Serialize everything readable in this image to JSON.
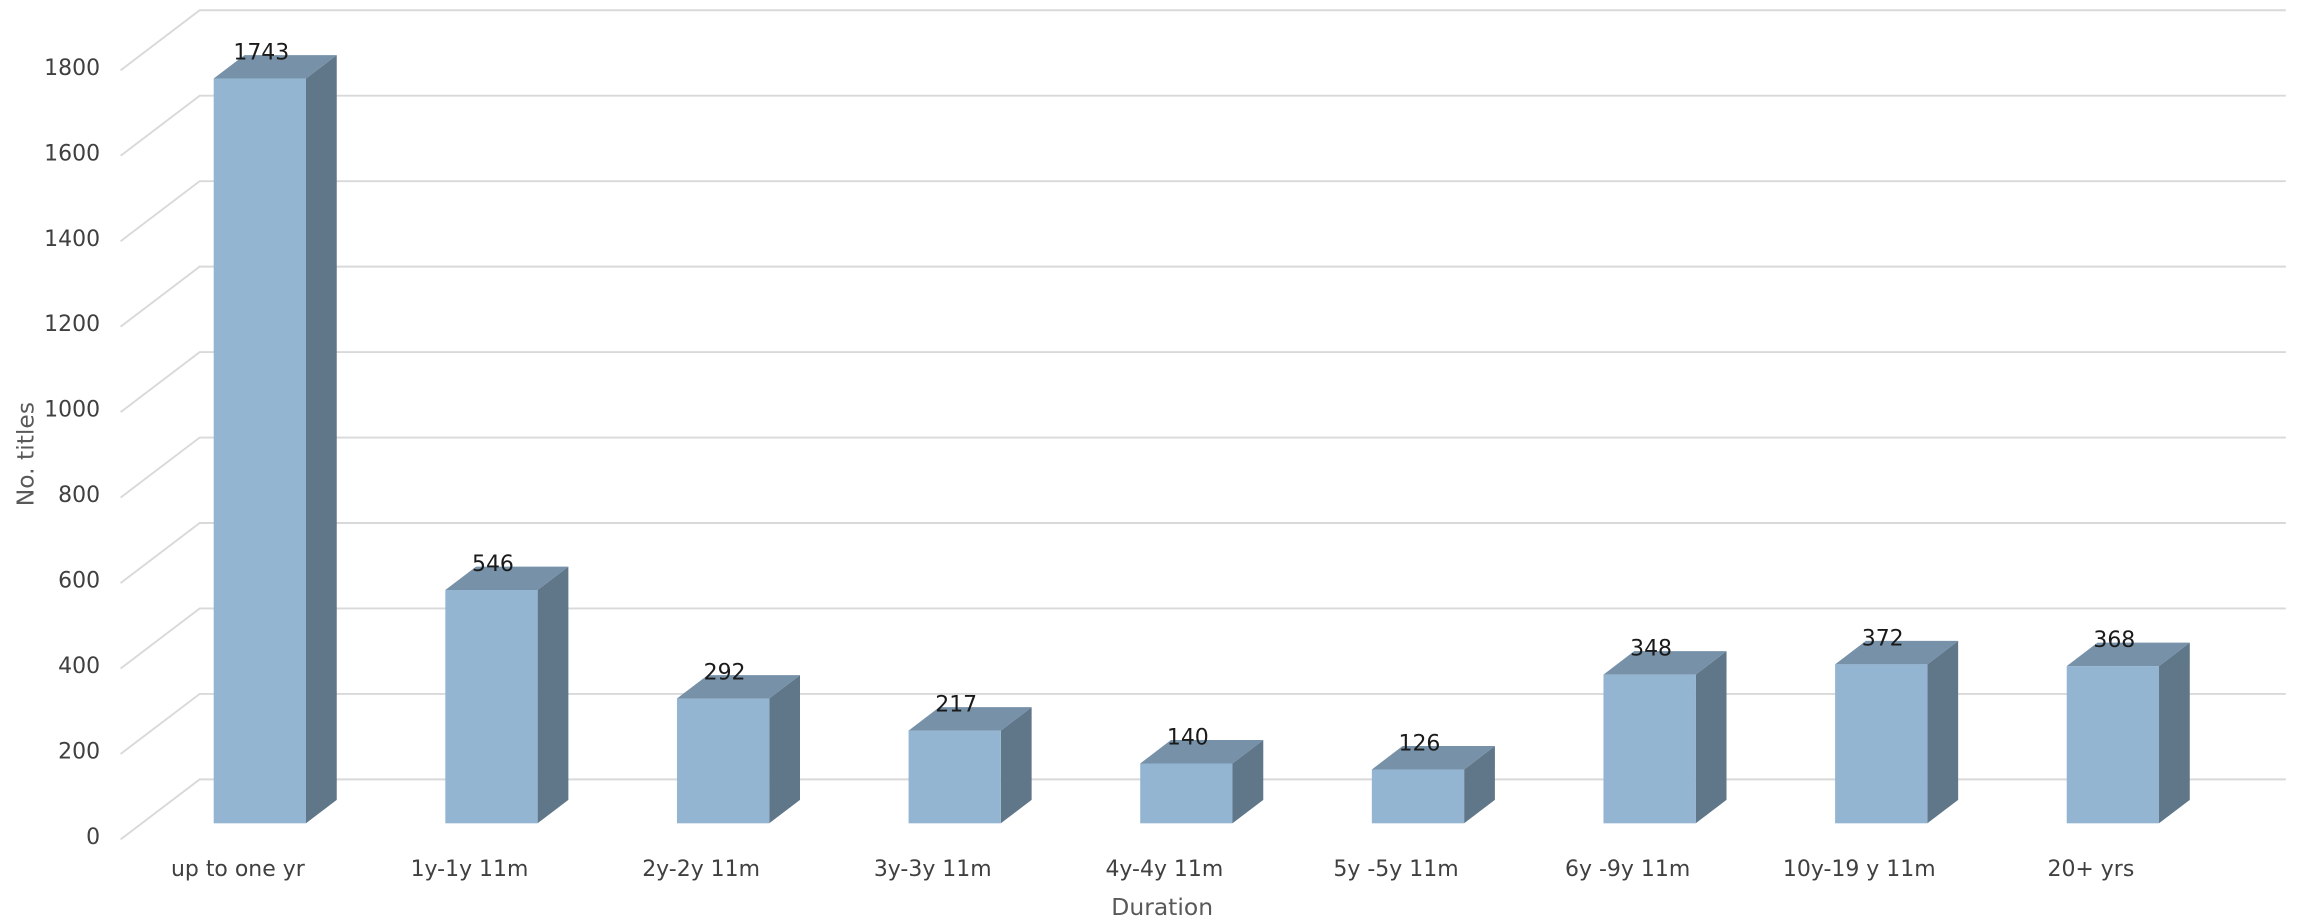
{
  "chart_data": {
    "type": "bar3d",
    "x_label": "Duration",
    "y_label": "No. titles",
    "categories": [
      "up to one yr",
      "1y-1y 11m",
      "2y-2y 11m",
      "3y-3y 11m",
      "4y-4y 11m",
      "5y -5y 11m",
      "6y -9y 11m",
      "10y-19 y 11m",
      "20+ yrs"
    ],
    "values": [
      1743,
      546,
      292,
      217,
      140,
      126,
      348,
      372,
      368
    ],
    "color": "#93b5d2",
    "ylim": [
      0,
      1800
    ],
    "yticks": [
      0,
      200,
      400,
      600,
      800,
      1000,
      1200,
      1400,
      1600,
      1800
    ],
    "grid": true
  }
}
